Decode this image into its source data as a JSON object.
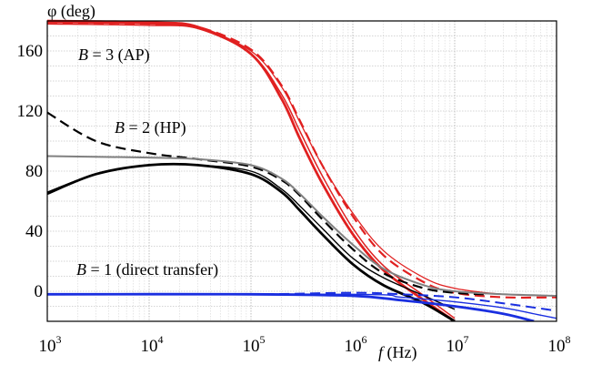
{
  "chart_data": {
    "type": "line",
    "x_scale": "log",
    "xlim": [
      1000,
      100000000
    ],
    "ylim": [
      -20,
      180
    ],
    "grid": true,
    "ylabel": "φ (deg)",
    "xlabel": {
      "italic": "f",
      "rest": " (Hz)"
    },
    "y_ticks": [
      0,
      40,
      80,
      120,
      160
    ],
    "x_ticks": [
      {
        "base": "10",
        "exp": "3",
        "value": 1000
      },
      {
        "base": "10",
        "exp": "4",
        "value": 10000
      },
      {
        "base": "10",
        "exp": "5",
        "value": 100000
      },
      {
        "base": "10",
        "exp": "6",
        "value": 1000000
      },
      {
        "base": "10",
        "exp": "7",
        "value": 10000000
      },
      {
        "base": "10",
        "exp": "8",
        "value": 100000000
      }
    ],
    "annotations": [
      {
        "italic": "B",
        "rest": " = 3 (AP)"
      },
      {
        "italic": "B",
        "rest": " = 2 (HP)"
      },
      {
        "italic": "B",
        "rest": " = 1 (direct transfer)"
      }
    ],
    "series": [
      {
        "group": "AP",
        "color": "#e02020",
        "style": "solid",
        "width": 2.8,
        "points": [
          [
            1000,
            180
          ],
          [
            10000,
            179
          ],
          [
            30000,
            176
          ],
          [
            100000,
            158
          ],
          [
            200000,
            128
          ],
          [
            300000,
            102
          ],
          [
            500000,
            72
          ],
          [
            1000000,
            38
          ],
          [
            2000000,
            14
          ],
          [
            5000000,
            -6
          ],
          [
            10000000,
            -20
          ]
        ]
      },
      {
        "group": "AP",
        "color": "#e02020",
        "style": "solid",
        "width": 1.5,
        "points": [
          [
            1000,
            179
          ],
          [
            10000,
            178
          ],
          [
            30000,
            175
          ],
          [
            100000,
            158
          ],
          [
            200000,
            131
          ],
          [
            300000,
            107
          ],
          [
            500000,
            77
          ],
          [
            1000000,
            42
          ],
          [
            2000000,
            17
          ],
          [
            5000000,
            -3
          ],
          [
            10000000,
            -18
          ]
        ]
      },
      {
        "group": "AP",
        "color": "#e02020",
        "style": "dashed",
        "width": 2.2,
        "points": [
          [
            1000,
            179
          ],
          [
            10000,
            178
          ],
          [
            30000,
            176
          ],
          [
            100000,
            161
          ],
          [
            200000,
            137
          ],
          [
            300000,
            114
          ],
          [
            500000,
            84
          ],
          [
            1000000,
            50
          ],
          [
            2000000,
            24
          ],
          [
            5000000,
            6
          ],
          [
            10000000,
            -1
          ],
          [
            30000000,
            -4
          ],
          [
            100000000,
            -4
          ]
        ]
      },
      {
        "group": "AP",
        "color": "#e02020",
        "style": "solid",
        "width": 1.3,
        "points": [
          [
            1000,
            178
          ],
          [
            10000,
            177
          ],
          [
            30000,
            175
          ],
          [
            100000,
            160
          ],
          [
            200000,
            136
          ],
          [
            300000,
            113
          ],
          [
            500000,
            84
          ],
          [
            1000000,
            52
          ],
          [
            2000000,
            27
          ],
          [
            5000000,
            9
          ],
          [
            10000000,
            2
          ],
          [
            30000000,
            -2
          ],
          [
            100000000,
            -3
          ]
        ]
      },
      {
        "group": "HP",
        "color": "#000000",
        "style": "solid",
        "width": 2.8,
        "points": [
          [
            1000,
            65
          ],
          [
            3000,
            78
          ],
          [
            10000,
            84
          ],
          [
            30000,
            84
          ],
          [
            100000,
            78
          ],
          [
            200000,
            66
          ],
          [
            300000,
            54
          ],
          [
            500000,
            38
          ],
          [
            1000000,
            18
          ],
          [
            2000000,
            4
          ],
          [
            5000000,
            -8
          ],
          [
            10000000,
            -20
          ]
        ]
      },
      {
        "group": "HP",
        "color": "#000000",
        "style": "solid",
        "width": 1.4,
        "points": [
          [
            1000,
            66
          ],
          [
            3000,
            78
          ],
          [
            10000,
            84
          ],
          [
            30000,
            84
          ],
          [
            100000,
            80
          ],
          [
            200000,
            68
          ],
          [
            300000,
            57
          ],
          [
            500000,
            42
          ],
          [
            1000000,
            22
          ],
          [
            2000000,
            9
          ],
          [
            5000000,
            -3
          ],
          [
            10000000,
            -12
          ]
        ]
      },
      {
        "group": "HP",
        "color": "#000000",
        "style": "dashed",
        "width": 2.2,
        "points": [
          [
            1000,
            119
          ],
          [
            3000,
            100
          ],
          [
            10000,
            92
          ],
          [
            30000,
            88
          ],
          [
            100000,
            83
          ],
          [
            200000,
            74
          ],
          [
            300000,
            64
          ],
          [
            500000,
            48
          ],
          [
            1000000,
            28
          ],
          [
            2000000,
            12
          ],
          [
            5000000,
            2
          ],
          [
            10000000,
            -1
          ],
          [
            20000000,
            -2
          ]
        ]
      },
      {
        "group": "HP",
        "color": "#808080",
        "style": "solid",
        "width": 2.0,
        "points": [
          [
            1000,
            90
          ],
          [
            10000,
            89
          ],
          [
            30000,
            88
          ],
          [
            100000,
            84
          ],
          [
            200000,
            75
          ],
          [
            300000,
            65
          ],
          [
            500000,
            50
          ],
          [
            1000000,
            31
          ],
          [
            2000000,
            15
          ],
          [
            5000000,
            4
          ],
          [
            10000000,
            0
          ],
          [
            30000000,
            -2
          ],
          [
            100000000,
            -3
          ]
        ]
      },
      {
        "group": "DT",
        "color": "#1a2fe0",
        "style": "solid",
        "width": 2.8,
        "points": [
          [
            1000,
            -2
          ],
          [
            100000,
            -2
          ],
          [
            1000000,
            -3
          ],
          [
            3000000,
            -6
          ],
          [
            10000000,
            -10
          ],
          [
            30000000,
            -15
          ],
          [
            60000000,
            -20
          ]
        ]
      },
      {
        "group": "DT",
        "color": "#1a2fe0",
        "style": "solid",
        "width": 1.4,
        "points": [
          [
            1000,
            -2
          ],
          [
            1000000,
            -2
          ],
          [
            3000000,
            -4
          ],
          [
            10000000,
            -7
          ],
          [
            30000000,
            -11
          ],
          [
            60000000,
            -15
          ],
          [
            100000000,
            -18
          ]
        ]
      },
      {
        "group": "DT",
        "color": "#1a2fe0",
        "style": "dashed",
        "width": 2.0,
        "points": [
          [
            1000,
            -2
          ],
          [
            100000,
            -2
          ],
          [
            1000000,
            -1
          ],
          [
            3000000,
            -2
          ],
          [
            10000000,
            -4
          ],
          [
            30000000,
            -8
          ],
          [
            100000000,
            -13
          ]
        ]
      }
    ]
  }
}
